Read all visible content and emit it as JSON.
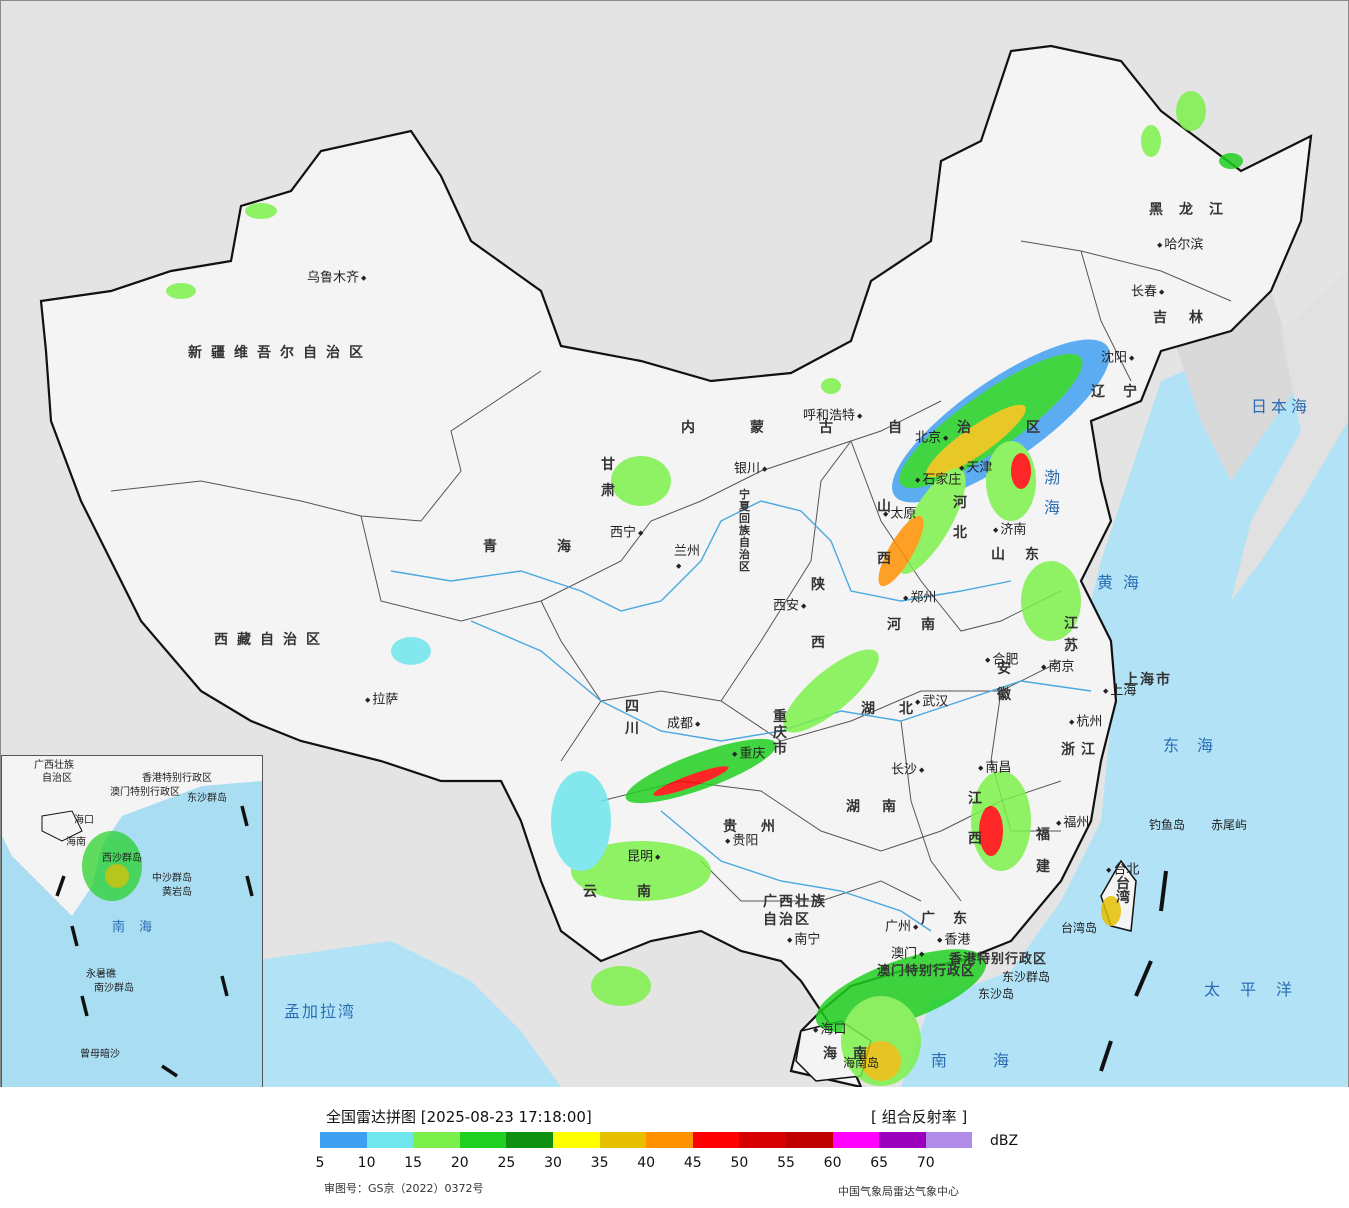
{
  "map": {
    "cities": [
      {
        "name": "乌鲁木齐",
        "side": "left"
      },
      {
        "name": "呼和浩特",
        "side": "left"
      },
      {
        "name": "哈尔滨",
        "side": "right"
      },
      {
        "name": "长春",
        "side": "left"
      },
      {
        "name": "沈阳",
        "side": "left"
      },
      {
        "name": "北京",
        "side": "left"
      },
      {
        "name": "天津",
        "side": "right"
      },
      {
        "name": "石家庄",
        "side": "right"
      },
      {
        "name": "太原",
        "side": "right"
      },
      {
        "name": "济南",
        "side": "right"
      },
      {
        "name": "银川",
        "side": "left"
      },
      {
        "name": "西宁",
        "side": "left"
      },
      {
        "name": "兰州",
        "side": "left"
      },
      {
        "name": "西安",
        "side": "left"
      },
      {
        "name": "郑州",
        "side": "right"
      },
      {
        "name": "合肥",
        "side": "right"
      },
      {
        "name": "南京",
        "side": "right"
      },
      {
        "name": "上海",
        "side": "right"
      },
      {
        "name": "杭州",
        "side": "right"
      },
      {
        "name": "武汉",
        "side": "right"
      },
      {
        "name": "成都",
        "side": "left"
      },
      {
        "name": "重庆",
        "side": "right"
      },
      {
        "name": "长沙",
        "side": "left"
      },
      {
        "name": "南昌",
        "side": "right"
      },
      {
        "name": "福州",
        "side": "right"
      },
      {
        "name": "贵阳",
        "side": "right"
      },
      {
        "name": "昆明",
        "side": "left"
      },
      {
        "name": "南宁",
        "side": "right"
      },
      {
        "name": "广州",
        "side": "left"
      },
      {
        "name": "香港",
        "side": "right"
      },
      {
        "name": "澳门",
        "side": "left"
      },
      {
        "name": "台北",
        "side": "right"
      },
      {
        "name": "海口",
        "side": "right"
      },
      {
        "name": "拉萨",
        "side": "right"
      }
    ],
    "regions": [
      "新疆维吾尔自治区",
      "西藏自治区",
      "青海",
      "甘肃",
      "内蒙古自治区",
      "宁夏回族自治区",
      "黑龙江",
      "吉林",
      "辽宁",
      "河北",
      "山西",
      "山东",
      "陕西",
      "河南",
      "江苏",
      "安徽",
      "上海市",
      "浙江",
      "湖北",
      "四川",
      "重庆市",
      "湖南",
      "江西",
      "福建",
      "贵州",
      "云南",
      "广西壮族自治区",
      "广东",
      "香港特别行政区",
      "澳门特别行政区",
      "海南",
      "台湾"
    ],
    "seas": [
      "日本海",
      "黄海",
      "东海",
      "太平洋",
      "南海",
      "孟加拉湾",
      "渤海"
    ],
    "islands": [
      "钓鱼岛",
      "赤尾屿",
      "东沙群岛",
      "台湾岛",
      "东沙岛",
      "海南岛"
    ],
    "inset_labels": [
      "广西壮族",
      "自治区",
      "香港特别行政区",
      "澳门特别行政区",
      "东沙群岛",
      "海口",
      "海南",
      "西沙群岛",
      "中沙群岛",
      "黄岩岛",
      "南海",
      "永暑礁",
      "南沙群岛",
      "曾母暗沙"
    ]
  },
  "legend": {
    "title": "全国雷达拼图 [2025-08-23 17:18:00]",
    "product": "[ 组合反射率 ]",
    "unit": "dBZ",
    "ticks": [
      "5",
      "10",
      "15",
      "20",
      "25",
      "30",
      "35",
      "40",
      "45",
      "50",
      "55",
      "60",
      "65",
      "70"
    ],
    "colors": [
      "#3f9ff0",
      "#6ee6ec",
      "#7cf04a",
      "#20d020",
      "#109010",
      "#ffff00",
      "#e6c000",
      "#ff9000",
      "#ff0000",
      "#d80000",
      "#c00000",
      "#ff00ff",
      "#9b00bc",
      "#b08ce8"
    ],
    "approval_number": "审图号：GS京（2022）0372号",
    "agency": "中国气象局雷达气象中心"
  }
}
